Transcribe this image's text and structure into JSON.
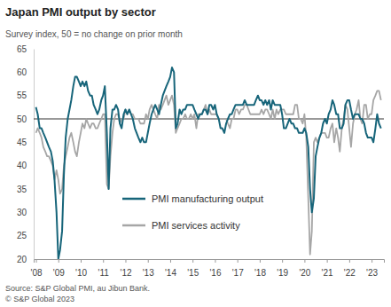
{
  "chart_data": {
    "type": "line",
    "title": "Japan PMI output by sector",
    "subtitle": "Survey index, 50 = no change on prior month",
    "source": "Source: S&P Global PMI, au Jibun Bank.",
    "copyright": "© S&P Global 2023",
    "x": [
      2008,
      2008.08,
      2008.17,
      2008.25,
      2008.33,
      2008.42,
      2008.5,
      2008.58,
      2008.67,
      2008.75,
      2008.83,
      2008.92,
      2009,
      2009.08,
      2009.17,
      2009.25,
      2009.33,
      2009.42,
      2009.5,
      2009.58,
      2009.67,
      2009.75,
      2009.83,
      2009.92,
      2010,
      2010.08,
      2010.17,
      2010.25,
      2010.33,
      2010.42,
      2010.5,
      2010.58,
      2010.67,
      2010.75,
      2010.83,
      2010.92,
      2011,
      2011.08,
      2011.17,
      2011.25,
      2011.33,
      2011.42,
      2011.5,
      2011.58,
      2011.67,
      2011.75,
      2011.83,
      2011.92,
      2012,
      2012.08,
      2012.17,
      2012.25,
      2012.33,
      2012.42,
      2012.5,
      2012.58,
      2012.67,
      2012.75,
      2012.83,
      2012.92,
      2013,
      2013.08,
      2013.17,
      2013.25,
      2013.33,
      2013.42,
      2013.5,
      2013.58,
      2013.67,
      2013.75,
      2013.83,
      2013.92,
      2014,
      2014.08,
      2014.17,
      2014.25,
      2014.33,
      2014.42,
      2014.5,
      2014.58,
      2014.67,
      2014.75,
      2014.83,
      2014.92,
      2015,
      2015.08,
      2015.17,
      2015.25,
      2015.33,
      2015.42,
      2015.5,
      2015.58,
      2015.67,
      2015.75,
      2015.83,
      2015.92,
      2016,
      2016.08,
      2016.17,
      2016.25,
      2016.33,
      2016.42,
      2016.5,
      2016.58,
      2016.67,
      2016.75,
      2016.83,
      2016.92,
      2017,
      2017.08,
      2017.17,
      2017.25,
      2017.33,
      2017.42,
      2017.5,
      2017.58,
      2017.67,
      2017.75,
      2017.83,
      2017.92,
      2018,
      2018.08,
      2018.17,
      2018.25,
      2018.33,
      2018.42,
      2018.5,
      2018.58,
      2018.67,
      2018.75,
      2018.83,
      2018.92,
      2019,
      2019.08,
      2019.17,
      2019.25,
      2019.33,
      2019.42,
      2019.5,
      2019.58,
      2019.67,
      2019.75,
      2019.83,
      2019.92,
      2020,
      2020.08,
      2020.17,
      2020.25,
      2020.33,
      2020.42,
      2020.5,
      2020.58,
      2020.67,
      2020.75,
      2020.83,
      2020.92,
      2021,
      2021.08,
      2021.17,
      2021.25,
      2021.33,
      2021.42,
      2021.5,
      2021.58,
      2021.67,
      2021.75,
      2021.83,
      2021.92,
      2022,
      2022.08,
      2022.17,
      2022.25,
      2022.33,
      2022.42,
      2022.5,
      2022.58,
      2022.67,
      2022.75,
      2022.83,
      2022.92,
      2023,
      2023.08,
      2023.17,
      2023.25,
      2023.33,
      2023.42
    ],
    "series": [
      {
        "name": "PMI manufacturing output",
        "color": "#17657a",
        "values": [
          52.5,
          51,
          48,
          48,
          47,
          46,
          45,
          44,
          43,
          41,
          37,
          30,
          20,
          22,
          26,
          38,
          46,
          50,
          52,
          54,
          57,
          59,
          59,
          58,
          57,
          58,
          57,
          58,
          56,
          55,
          55,
          53,
          52,
          51,
          52,
          54,
          55,
          57,
          47,
          35,
          48,
          52,
          52,
          53,
          52,
          49,
          48,
          51,
          52,
          51,
          52,
          51,
          50,
          48,
          47,
          46,
          45,
          46,
          45,
          45,
          47,
          49,
          51,
          52,
          53,
          52,
          51,
          53,
          55,
          56,
          57,
          58,
          59,
          61,
          60,
          48,
          49,
          52,
          51,
          52,
          52,
          53,
          53,
          53,
          53,
          52,
          51,
          50,
          51,
          51,
          52,
          52,
          51,
          53,
          53,
          52,
          53,
          51,
          50,
          48,
          48,
          47,
          49,
          50,
          51,
          51,
          52,
          53,
          53,
          53,
          53,
          53,
          54,
          53,
          53,
          53,
          53,
          53,
          54,
          55,
          54,
          54,
          53,
          54,
          53,
          54,
          52,
          54,
          53,
          53,
          53,
          53,
          51,
          48,
          48,
          49,
          50,
          49,
          49,
          48,
          48,
          47,
          47,
          47,
          48,
          47,
          44,
          35,
          30,
          33,
          42,
          44,
          46,
          47,
          49,
          50,
          49,
          51,
          52,
          54,
          53,
          51,
          51,
          48,
          48,
          49,
          53,
          54,
          54,
          52,
          50,
          51,
          51,
          51,
          50,
          50,
          49,
          47,
          46,
          46,
          46,
          45,
          48,
          51,
          49,
          48
        ]
      },
      {
        "name": "PMI services activity",
        "color": "#a6a6a6",
        "values": [
          47,
          48,
          47,
          46,
          44,
          43,
          42,
          42,
          41,
          40,
          37,
          39,
          37,
          34,
          35,
          40,
          42,
          44,
          46,
          47,
          45,
          43,
          42,
          45,
          47,
          49,
          48,
          50,
          49,
          48,
          49,
          49,
          48,
          48,
          49,
          50,
          51,
          51,
          36,
          35,
          42,
          47,
          50,
          51,
          51,
          49,
          50,
          50,
          52,
          51,
          52,
          51,
          51,
          50,
          50,
          50,
          49,
          49,
          49,
          51,
          50,
          52,
          53,
          52,
          51,
          50,
          53,
          52,
          53,
          54,
          55,
          53,
          54,
          55,
          53,
          47,
          48,
          49,
          50,
          50,
          51,
          50,
          50,
          51,
          50,
          51,
          48,
          51,
          51,
          51,
          52,
          53,
          51,
          52,
          51,
          51,
          51,
          51,
          50,
          50,
          50,
          50,
          50,
          49,
          48,
          50,
          50,
          52,
          52,
          51,
          52,
          52,
          53,
          53,
          52,
          51,
          51,
          51,
          51,
          51,
          51,
          52,
          51,
          52,
          52,
          51,
          50,
          52,
          50,
          52,
          51,
          52,
          52,
          52,
          51,
          51,
          51,
          51,
          51,
          53,
          53,
          50,
          50,
          49,
          51,
          46,
          33,
          21,
          26,
          45,
          46,
          45,
          46,
          47,
          47,
          47,
          46,
          46,
          48,
          49,
          45,
          48,
          46,
          43,
          48,
          50,
          53,
          52,
          48,
          44,
          49,
          51,
          52,
          54,
          50,
          49,
          53,
          53,
          50,
          51,
          51,
          54,
          55,
          56,
          56,
          54
        ]
      }
    ],
    "baseline": 50,
    "xlim": [
      2007.9,
      2023.55
    ],
    "xticks": [
      {
        "value": 2008,
        "label": "'08"
      },
      {
        "value": 2009,
        "label": "'09"
      },
      {
        "value": 2010,
        "label": "'10"
      },
      {
        "value": 2011,
        "label": "'11"
      },
      {
        "value": 2012,
        "label": "'12"
      },
      {
        "value": 2013,
        "label": "'13"
      },
      {
        "value": 2014,
        "label": "'14"
      },
      {
        "value": 2015,
        "label": "'15"
      },
      {
        "value": 2016,
        "label": "'16"
      },
      {
        "value": 2017,
        "label": "'17"
      },
      {
        "value": 2018,
        "label": "'18"
      },
      {
        "value": 2019,
        "label": "'19"
      },
      {
        "value": 2020,
        "label": "'20"
      },
      {
        "value": 2021,
        "label": "'21"
      },
      {
        "value": 2022,
        "label": "'22"
      },
      {
        "value": 2023,
        "label": "'23"
      }
    ],
    "ylim": [
      20,
      65
    ],
    "yticks": [
      20,
      25,
      30,
      35,
      40,
      45,
      50,
      55,
      60,
      65
    ],
    "grid": false,
    "legend": "bottom"
  }
}
